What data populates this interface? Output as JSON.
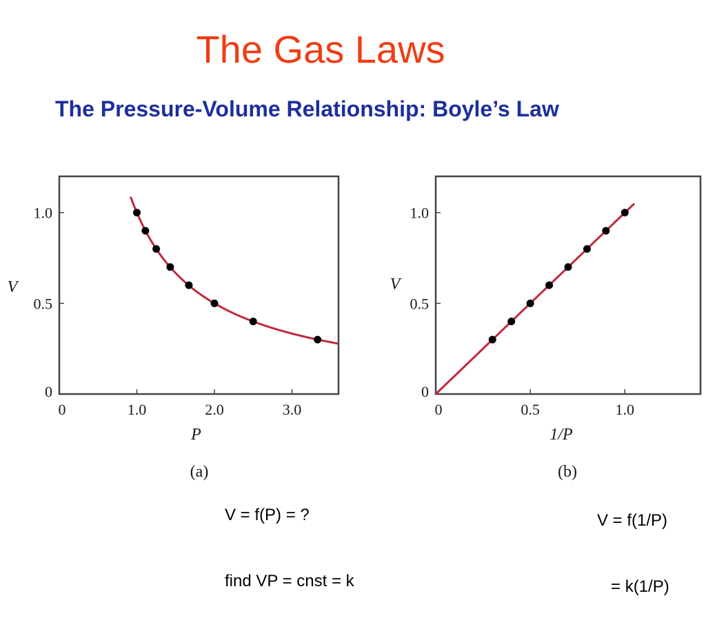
{
  "slide": {
    "title": "The Gas Laws",
    "subtitle": "The Pressure-Volume Relationship: Boyle’s Law",
    "title_color": "#f03c14",
    "subtitle_color": "#1d2f9c"
  },
  "colors": {
    "curve": "#c0293b",
    "point": "#000000",
    "frame": "#444444"
  },
  "chart_data": [
    {
      "type": "scatter",
      "panel_label": "(a)",
      "xlabel": "P",
      "ylabel": "V",
      "xlim": [
        0,
        3.6
      ],
      "ylim": [
        0,
        1.2
      ],
      "xticks": [
        0,
        1.0,
        2.0,
        3.0
      ],
      "xtick_labels": [
        "0",
        "1.0",
        "2.0",
        "3.0"
      ],
      "yticks": [
        0,
        0.5,
        1.0
      ],
      "ytick_labels": [
        "0",
        "0.5",
        "1.0"
      ],
      "points": [
        {
          "x": 1.0,
          "y": 1.0
        },
        {
          "x": 1.11,
          "y": 0.9
        },
        {
          "x": 1.25,
          "y": 0.8
        },
        {
          "x": 1.43,
          "y": 0.7
        },
        {
          "x": 1.67,
          "y": 0.6
        },
        {
          "x": 2.0,
          "y": 0.5
        },
        {
          "x": 2.5,
          "y": 0.4
        },
        {
          "x": 3.33,
          "y": 0.3
        }
      ],
      "curve": {
        "type": "hyperbola",
        "k": 1.0,
        "x_range": [
          0.92,
          3.6
        ]
      },
      "grid": false,
      "formula_lines": [
        "V = f(P) = ?",
        "find VP = cnst = k"
      ]
    },
    {
      "type": "scatter",
      "panel_label": "(b)",
      "xlabel": "1/P",
      "ylabel": "V",
      "xlim": [
        0,
        1.4
      ],
      "ylim": [
        0,
        1.2
      ],
      "xticks": [
        0,
        0.5,
        1.0
      ],
      "xtick_labels": [
        "0",
        "0.5",
        "1.0"
      ],
      "yticks": [
        0,
        0.5,
        1.0
      ],
      "ytick_labels": [
        "0",
        "0.5",
        "1.0"
      ],
      "points": [
        {
          "x": 0.3,
          "y": 0.3
        },
        {
          "x": 0.4,
          "y": 0.4
        },
        {
          "x": 0.5,
          "y": 0.5
        },
        {
          "x": 0.6,
          "y": 0.6
        },
        {
          "x": 0.7,
          "y": 0.7
        },
        {
          "x": 0.8,
          "y": 0.8
        },
        {
          "x": 0.9,
          "y": 0.9
        },
        {
          "x": 1.0,
          "y": 1.0
        }
      ],
      "curve": {
        "type": "line",
        "slope": 1.0,
        "x_range": [
          0,
          1.05
        ]
      },
      "grid": false,
      "formula_lines": [
        "V = f(1/P)",
        "   = k(1/P)"
      ]
    }
  ]
}
